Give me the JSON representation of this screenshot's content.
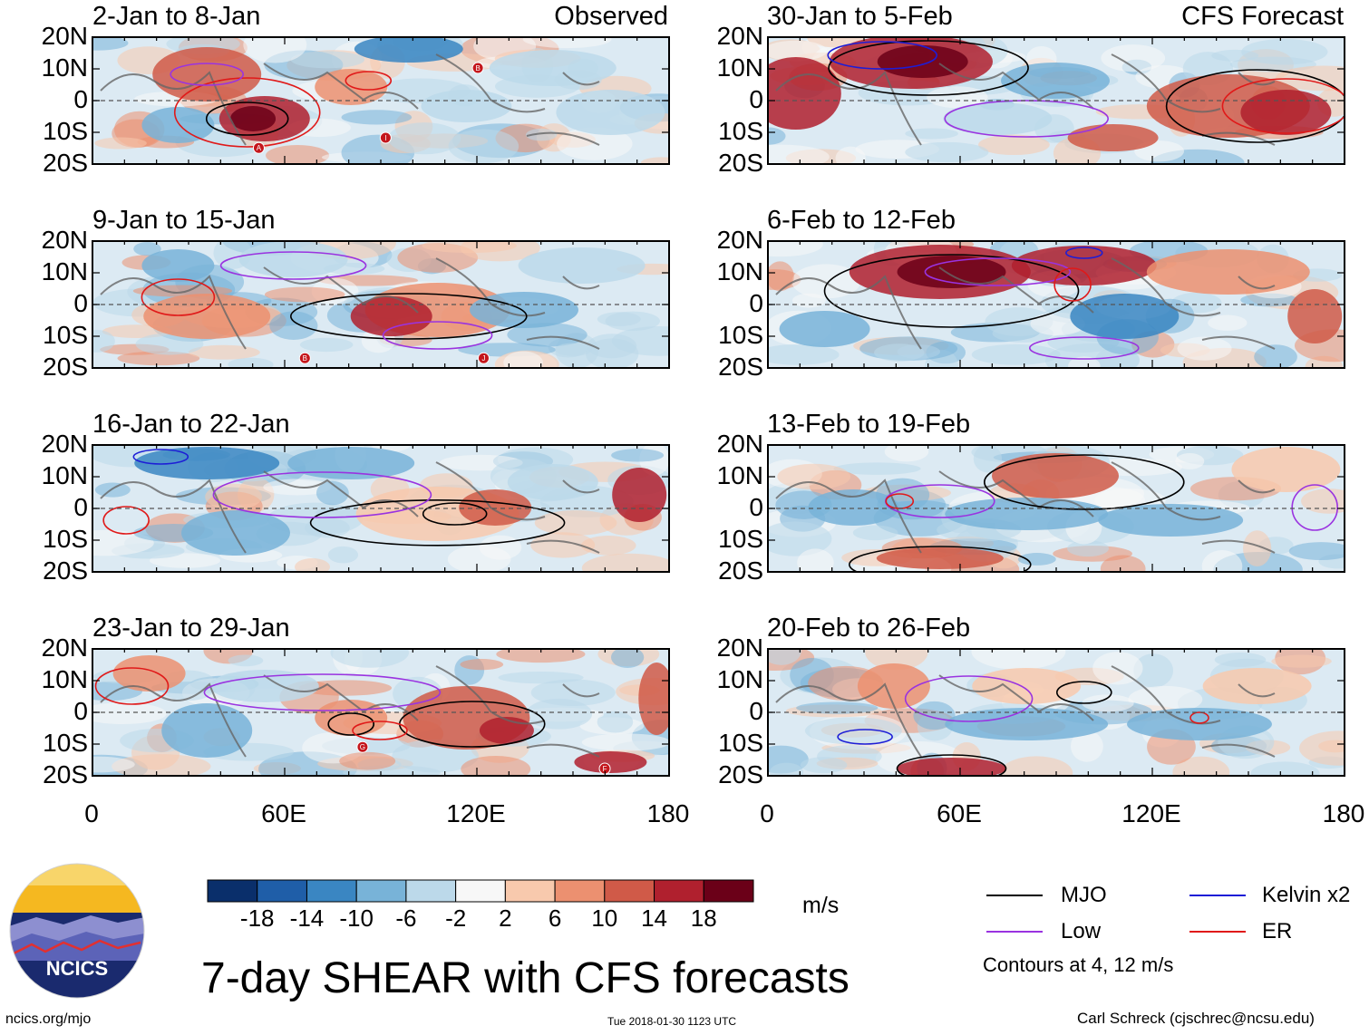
{
  "panels": {
    "left": [
      {
        "title": "2-Jan to 8-Jan",
        "label": "Observed"
      },
      {
        "title": "9-Jan to 15-Jan",
        "label": ""
      },
      {
        "title": "16-Jan to 22-Jan",
        "label": ""
      },
      {
        "title": "23-Jan to 29-Jan",
        "label": ""
      }
    ],
    "right": [
      {
        "title": "30-Jan to 5-Feb",
        "label": "CFS Forecast"
      },
      {
        "title": "6-Feb to 12-Feb",
        "label": ""
      },
      {
        "title": "13-Feb to 19-Feb",
        "label": ""
      },
      {
        "title": "20-Feb to 26-Feb",
        "label": ""
      }
    ]
  },
  "axes": {
    "lat_ticks": [
      "20N",
      "10N",
      "0",
      "10S",
      "20S"
    ],
    "lon_ticks": [
      "0",
      "60E",
      "120E",
      "180"
    ]
  },
  "colorbar": {
    "ticks": [
      "-18",
      "-14",
      "-10",
      "-6",
      "-2",
      "2",
      "6",
      "10",
      "14",
      "18"
    ],
    "colors": [
      "#0a2f6b",
      "#1f5ea8",
      "#3a86c2",
      "#78b3d8",
      "#bcd9ea",
      "#f7f7f7",
      "#f8c9ad",
      "#ec9070",
      "#d05a48",
      "#b0202e",
      "#6b0018"
    ],
    "units": "m/s"
  },
  "legend": {
    "items": [
      {
        "label": "MJO",
        "color": "#000000"
      },
      {
        "label": "Kelvin x2",
        "color": "#1d1dd6"
      },
      {
        "label": "Low",
        "color": "#9a33e0"
      },
      {
        "label": "ER",
        "color": "#e01919"
      }
    ],
    "contour_note": "Contours at 4, 12 m/s"
  },
  "title": "7-day SHEAR with CFS forecasts",
  "logo_text": "NCICS",
  "website": "ncics.org/mjo",
  "timestamp": "Tue 2018-01-30 1123 UTC",
  "credit": "Carl Schreck (cjschrec@ncsu.edu)",
  "storm_markers": {
    "p0": [
      "B",
      "A",
      "I"
    ],
    "p1": [
      "B",
      "J"
    ],
    "p3": [
      "G",
      "F"
    ]
  }
}
